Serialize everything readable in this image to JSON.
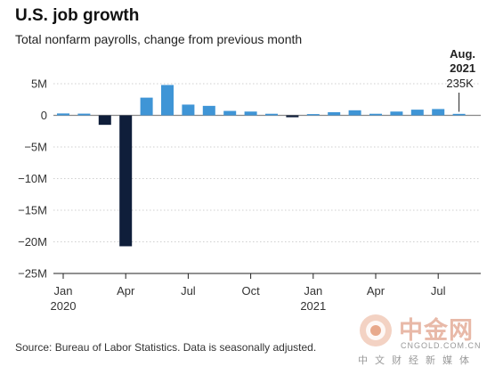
{
  "chart_data": {
    "type": "bar",
    "title": "U.S. job growth",
    "subtitle": "Total nonfarm payrolls, change from previous month",
    "source": "Source: Bureau of Labor Statistics. Data is seasonally adjusted.",
    "ylim": [
      -25000000,
      6000000
    ],
    "yticks": [
      {
        "value": 5000000,
        "label": "5M"
      },
      {
        "value": 0,
        "label": "0"
      },
      {
        "value": -5000000,
        "label": "−5M"
      },
      {
        "value": -10000000,
        "label": "−10M"
      },
      {
        "value": -15000000,
        "label": "−15M"
      },
      {
        "value": -20000000,
        "label": "−20M"
      },
      {
        "value": -25000000,
        "label": "−25M"
      }
    ],
    "xticks": [
      {
        "month": "2020-01",
        "label": "Jan",
        "year": "2020"
      },
      {
        "month": "2020-04",
        "label": "Apr",
        "year": ""
      },
      {
        "month": "2020-07",
        "label": "Jul",
        "year": ""
      },
      {
        "month": "2020-10",
        "label": "Oct",
        "year": ""
      },
      {
        "month": "2021-01",
        "label": "Jan",
        "year": "2021"
      },
      {
        "month": "2021-04",
        "label": "Apr",
        "year": ""
      },
      {
        "month": "2021-07",
        "label": "Jul",
        "year": ""
      }
    ],
    "x": [
      "2020-01",
      "2020-02",
      "2020-03",
      "2020-04",
      "2020-05",
      "2020-06",
      "2020-07",
      "2020-08",
      "2020-09",
      "2020-10",
      "2020-11",
      "2020-12",
      "2021-01",
      "2021-02",
      "2021-03",
      "2021-04",
      "2021-05",
      "2021-06",
      "2021-07",
      "2021-08"
    ],
    "values": [
      300000,
      270000,
      -1500000,
      -20700000,
      2800000,
      4800000,
      1700000,
      1500000,
      700000,
      600000,
      250000,
      -300000,
      200000,
      500000,
      800000,
      250000,
      600000,
      900000,
      1000000,
      235000
    ],
    "colors": {
      "positive": "#3f95d6",
      "negative": "#0f1e3a"
    },
    "annotation": {
      "month": "2021-08",
      "label_line1": "Aug.",
      "label_line2": "2021",
      "value_label": "235K"
    }
  },
  "watermark": {
    "name": "中金网",
    "domain": "CNGOLD.COM.CN",
    "tagline": "中文财经新媒体"
  }
}
